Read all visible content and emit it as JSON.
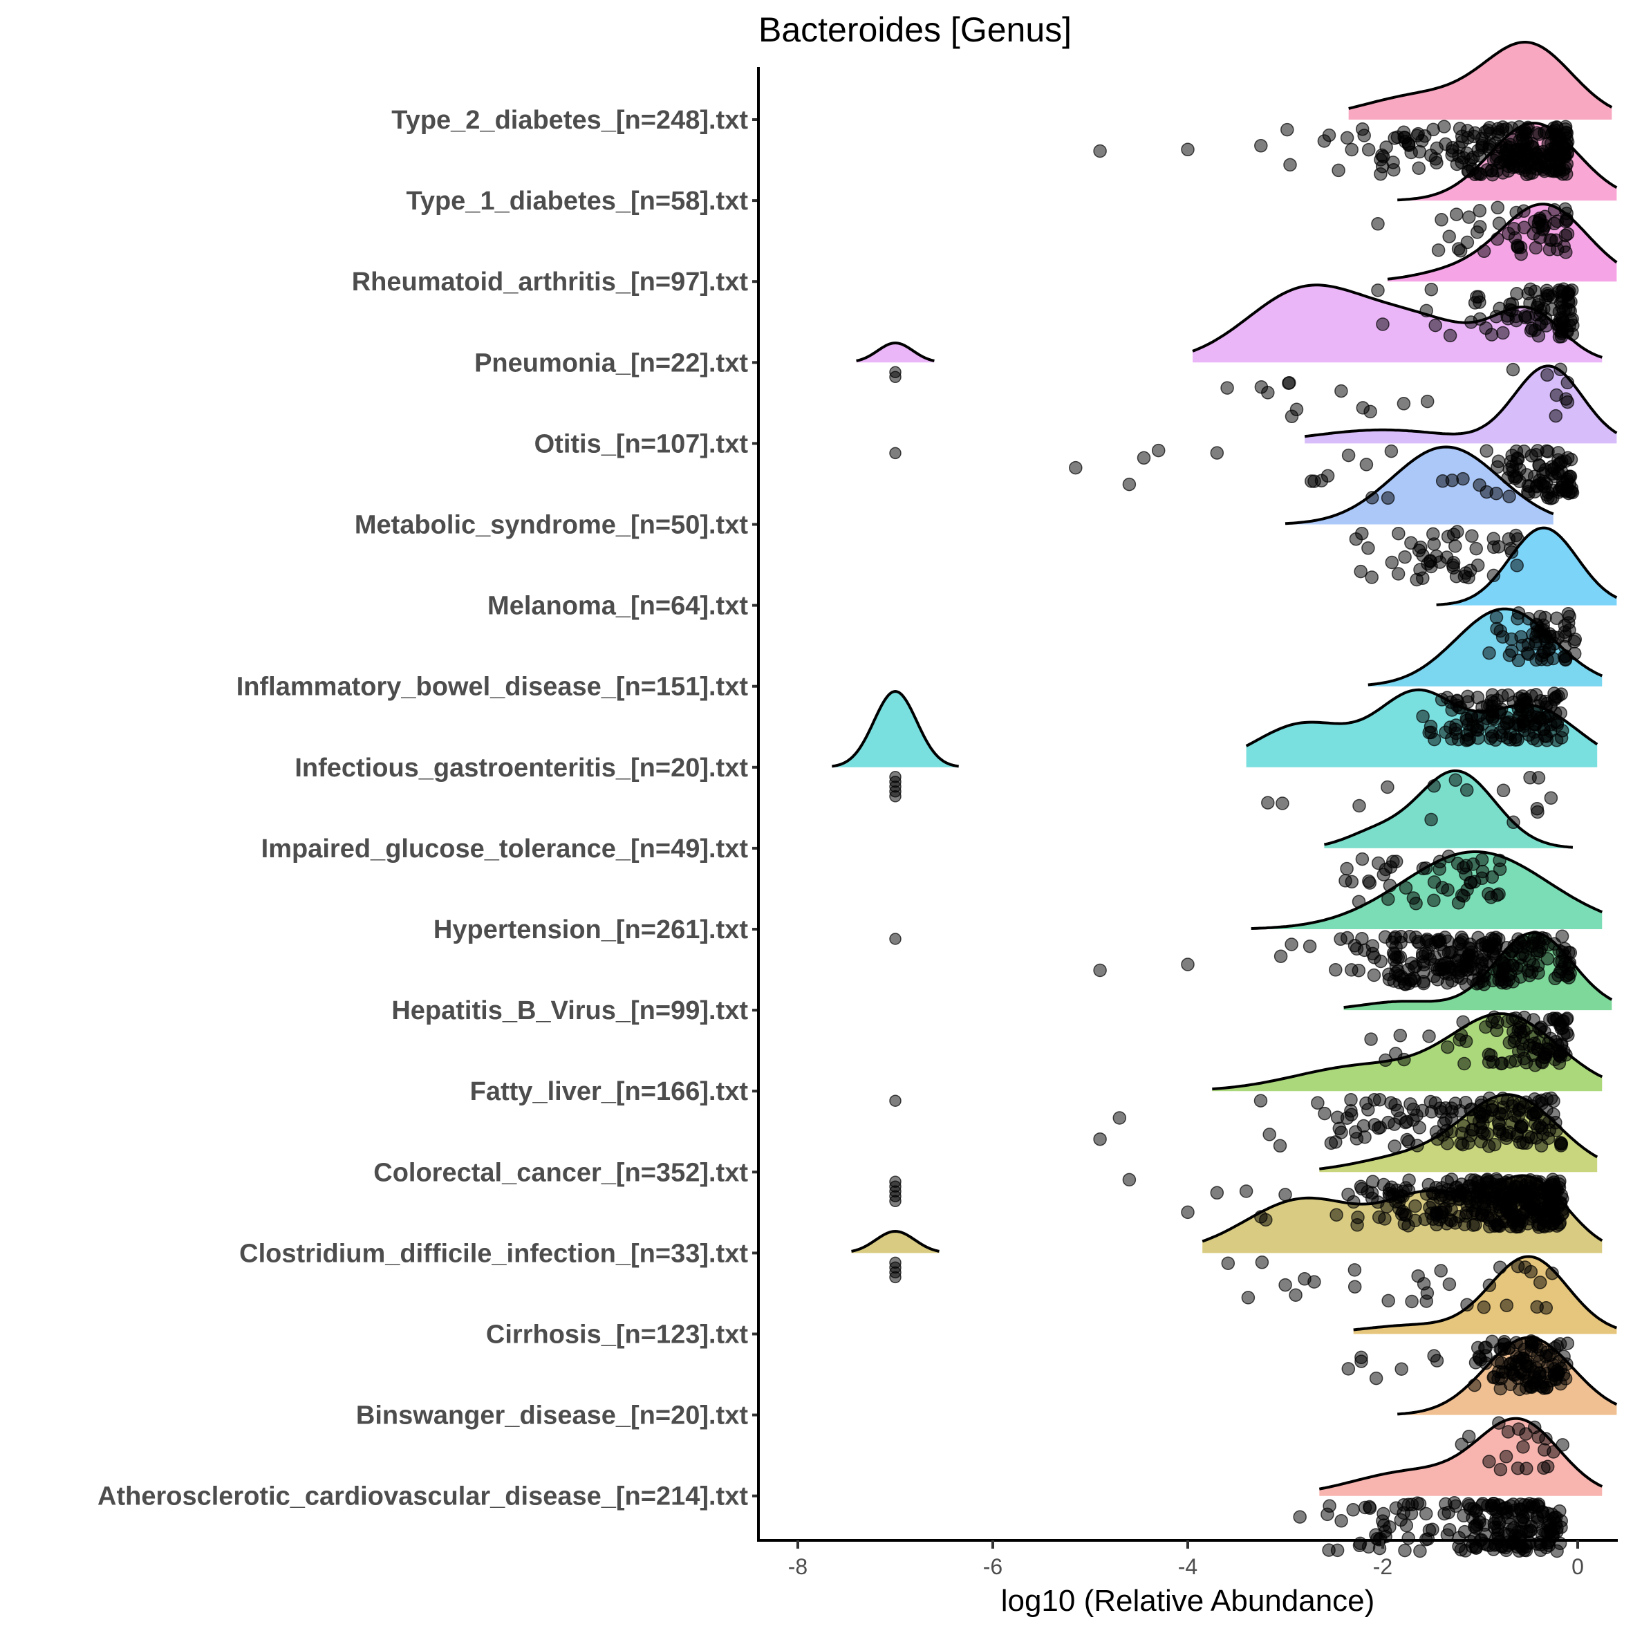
{
  "chart_data": {
    "type": "raincloud",
    "title": "Bacteroides [Genus]",
    "xlabel": "log10 (Relative Abundance)",
    "ylabel": "",
    "xlim": [
      -8.4,
      0.4
    ],
    "x_ticks": [
      -8,
      -6,
      -4,
      -2,
      0
    ],
    "x_tick_labels": [
      "-8",
      "-6",
      "-4",
      "-2",
      "0"
    ],
    "grid": false,
    "legend": "none",
    "point_color": "#000000",
    "point_alpha": 0.5,
    "groups": [
      {
        "label": "Type_2_diabetes_[n=248].txt",
        "n": 248,
        "color": "#F8A8C0",
        "density": [
          {
            "mu": -0.5,
            "sd": 0.45,
            "w": 0.75
          },
          {
            "mu": -1.6,
            "sd": 0.6,
            "w": 0.25
          }
        ],
        "range": [
          -2.35,
          0.35
        ],
        "bulk": [
          -2.6,
          -0.1
        ],
        "outliers": [
          -4.9,
          -4.0,
          -3.25,
          -2.98,
          -2.95,
          -2.6,
          -2.55
        ]
      },
      {
        "label": "Type_1_diabetes_[n=58].txt",
        "n": 58,
        "color": "#F9A8D6",
        "density": [
          {
            "mu": -0.45,
            "sd": 0.45,
            "w": 1.0
          }
        ],
        "range": [
          -1.85,
          0.4
        ],
        "bulk": [
          -1.5,
          -0.1
        ],
        "outliers": [
          -2.05
        ]
      },
      {
        "label": "Rheumatoid_arthritis_[n=97].txt",
        "n": 97,
        "color": "#F5A5E6",
        "density": [
          {
            "mu": -0.35,
            "sd": 0.45,
            "w": 0.9
          },
          {
            "mu": -1.3,
            "sd": 0.4,
            "w": 0.1
          }
        ],
        "range": [
          -1.95,
          0.4
        ],
        "bulk": [
          -1.6,
          -0.05
        ],
        "outliers": [
          -2.05,
          -2.0
        ]
      },
      {
        "label": "Pneumonia_[n=22].txt",
        "n": 22,
        "color": "#EBB6F8",
        "density": [
          {
            "mu": -2.8,
            "sd": 0.6,
            "w": 0.45
          },
          {
            "mu": -1.6,
            "sd": 0.6,
            "w": 0.25
          },
          {
            "mu": -0.5,
            "sd": 0.35,
            "w": 0.3
          }
        ],
        "range": [
          -3.95,
          0.25
        ],
        "bulk": [
          -3.6,
          -0.1
        ],
        "side": {
          "mu": -7.0,
          "sd": 0.18,
          "range": [
            -7.4,
            -6.6
          ],
          "scale": 0.09,
          "points": [
            -7.0,
            -7.0
          ]
        },
        "outliers": []
      },
      {
        "label": "Otitis_[n=107].txt",
        "n": 107,
        "color": "#D7BDF9",
        "density": [
          {
            "mu": -0.3,
            "sd": 0.35,
            "w": 0.85
          },
          {
            "mu": -2.0,
            "sd": 0.7,
            "w": 0.15
          }
        ],
        "range": [
          -2.8,
          0.4
        ],
        "bulk": [
          -2.9,
          -0.05
        ],
        "side": {
          "mu": -7.0,
          "sd": 0.1,
          "range": [
            -7.0,
            -7.0
          ],
          "scale": 0.0,
          "points": [
            -7.0
          ]
        },
        "outliers": [
          -5.15,
          -4.6,
          -4.45,
          -4.3,
          -3.7
        ]
      },
      {
        "label": "Metabolic_syndrome_[n=50].txt",
        "n": 50,
        "color": "#ABC8F8",
        "density": [
          {
            "mu": -1.35,
            "sd": 0.55,
            "w": 1.0
          }
        ],
        "range": [
          -3.0,
          -0.25
        ],
        "bulk": [
          -2.9,
          -0.6
        ],
        "outliers": []
      },
      {
        "label": "Melanoma_[n=64].txt",
        "n": 64,
        "color": "#7DD4F9",
        "density": [
          {
            "mu": -0.35,
            "sd": 0.35,
            "w": 1.0
          }
        ],
        "range": [
          -1.45,
          0.4
        ],
        "bulk": [
          -1.2,
          0.0
        ],
        "outliers": []
      },
      {
        "label": "Inflammatory_bowel_disease_[n=151].txt",
        "n": 151,
        "color": "#7BD6EF",
        "density": [
          {
            "mu": -0.75,
            "sd": 0.5,
            "w": 1.0
          }
        ],
        "range": [
          -2.15,
          0.25
        ],
        "bulk": [
          -2.3,
          -0.15
        ],
        "outliers": []
      },
      {
        "label": "Infectious_gastroenteritis_[n=20].txt",
        "n": 20,
        "color": "#7ADFDF",
        "density": [
          {
            "mu": -2.8,
            "sd": 0.5,
            "w": 0.25
          },
          {
            "mu": -1.65,
            "sd": 0.4,
            "w": 0.4
          },
          {
            "mu": -0.5,
            "sd": 0.5,
            "w": 0.35
          }
        ],
        "range": [
          -3.4,
          0.2
        ],
        "bulk": [
          -3.2,
          -0.15
        ],
        "side": {
          "mu": -7.0,
          "sd": 0.22,
          "range": [
            -7.65,
            -6.35
          ],
          "scale": 0.35,
          "points": [
            -7.0,
            -7.0,
            -7.0,
            -7.0,
            -7.0
          ]
        },
        "outliers": []
      },
      {
        "label": "Impaired_glucose_tolerance_[n=49].txt",
        "n": 49,
        "color": "#7BDECB",
        "density": [
          {
            "mu": -1.25,
            "sd": 0.4,
            "w": 0.85
          },
          {
            "mu": -2.1,
            "sd": 0.3,
            "w": 0.15
          }
        ],
        "range": [
          -2.6,
          -0.05
        ],
        "bulk": [
          -2.4,
          -0.4
        ],
        "outliers": []
      },
      {
        "label": "Hypertension_[n=261].txt",
        "n": 261,
        "color": "#7BDDB5",
        "density": [
          {
            "mu": -1.05,
            "sd": 0.75,
            "w": 1.0
          }
        ],
        "range": [
          -3.35,
          0.25
        ],
        "bulk": [
          -3.6,
          -0.05
        ],
        "side": {
          "mu": -7.0,
          "sd": 0.1,
          "range": [
            -7.0,
            -7.0
          ],
          "scale": 0.0,
          "points": [
            -7.0
          ]
        },
        "outliers": [
          -4.9,
          -4.0
        ]
      },
      {
        "label": "Hepatitis_B_Virus_[n=99].txt",
        "n": 99,
        "color": "#7DD89A",
        "density": [
          {
            "mu": -0.45,
            "sd": 0.4,
            "w": 0.9
          },
          {
            "mu": -1.8,
            "sd": 0.4,
            "w": 0.1
          }
        ],
        "range": [
          -2.4,
          0.35
        ],
        "bulk": [
          -2.5,
          -0.1
        ],
        "outliers": []
      },
      {
        "label": "Fatty_liver_[n=166].txt",
        "n": 166,
        "color": "#ACD87C",
        "density": [
          {
            "mu": -0.75,
            "sd": 0.55,
            "w": 0.75
          },
          {
            "mu": -2.2,
            "sd": 0.7,
            "w": 0.25
          }
        ],
        "range": [
          -3.75,
          0.25
        ],
        "bulk": [
          -4.05,
          -0.15
        ],
        "side": {
          "mu": -7.0,
          "sd": 0.1,
          "range": [
            -7.0,
            -7.0
          ],
          "scale": 0.0,
          "points": [
            -7.0
          ]
        },
        "outliers": [
          -4.9,
          -4.7
        ]
      },
      {
        "label": "Colorectal_cancer_[n=352].txt",
        "n": 352,
        "color": "#C9D67E",
        "density": [
          {
            "mu": -0.7,
            "sd": 0.5,
            "w": 0.85
          },
          {
            "mu": -1.8,
            "sd": 0.5,
            "w": 0.15
          }
        ],
        "range": [
          -2.65,
          0.2
        ],
        "bulk": [
          -2.65,
          -0.15
        ],
        "side": {
          "mu": -7.0,
          "sd": 0.1,
          "range": [
            -7.0,
            -7.0
          ],
          "scale": 0.0,
          "points": [
            -7.0,
            -7.0,
            -7.0,
            -7.0,
            -7.0
          ]
        },
        "outliers": [
          -4.6,
          -4.0,
          -3.7,
          -3.4,
          -3.25,
          -3.2,
          -3.0
        ]
      },
      {
        "label": "Clostridium_difficile_infection_[n=33].txt",
        "n": 33,
        "color": "#D9CC82",
        "density": [
          {
            "mu": -2.8,
            "sd": 0.6,
            "w": 0.3
          },
          {
            "mu": -1.5,
            "sd": 0.45,
            "w": 0.3
          },
          {
            "mu": -0.5,
            "sd": 0.4,
            "w": 0.4
          }
        ],
        "range": [
          -3.85,
          0.25
        ],
        "bulk": [
          -3.6,
          -0.2
        ],
        "side": {
          "mu": -7.0,
          "sd": 0.2,
          "range": [
            -7.45,
            -6.55
          ],
          "scale": 0.1,
          "points": [
            -7.0,
            -7.0,
            -7.0,
            -7.0
          ]
        },
        "outliers": []
      },
      {
        "label": "Cirrhosis_[n=123].txt",
        "n": 123,
        "color": "#E6C67C",
        "density": [
          {
            "mu": -0.5,
            "sd": 0.4,
            "w": 0.9
          },
          {
            "mu": -1.7,
            "sd": 0.5,
            "w": 0.1
          }
        ],
        "range": [
          -2.3,
          0.4
        ],
        "bulk": [
          -2.6,
          -0.1
        ],
        "outliers": []
      },
      {
        "label": "Binswanger_disease_[n=20].txt",
        "n": 20,
        "color": "#F0C092",
        "density": [
          {
            "mu": -0.5,
            "sd": 0.45,
            "w": 1.0
          }
        ],
        "range": [
          -1.85,
          0.4
        ],
        "bulk": [
          -1.6,
          -0.1
        ],
        "outliers": []
      },
      {
        "label": "Atherosclerotic_cardiovascular_disease_[n=214].txt",
        "n": 214,
        "color": "#F8B5B0",
        "density": [
          {
            "mu": -0.6,
            "sd": 0.42,
            "w": 0.75
          },
          {
            "mu": -1.7,
            "sd": 0.6,
            "w": 0.25
          }
        ],
        "range": [
          -2.65,
          0.25
        ],
        "bulk": [
          -2.6,
          -0.15
        ],
        "outliers": [
          -2.85
        ]
      }
    ]
  }
}
